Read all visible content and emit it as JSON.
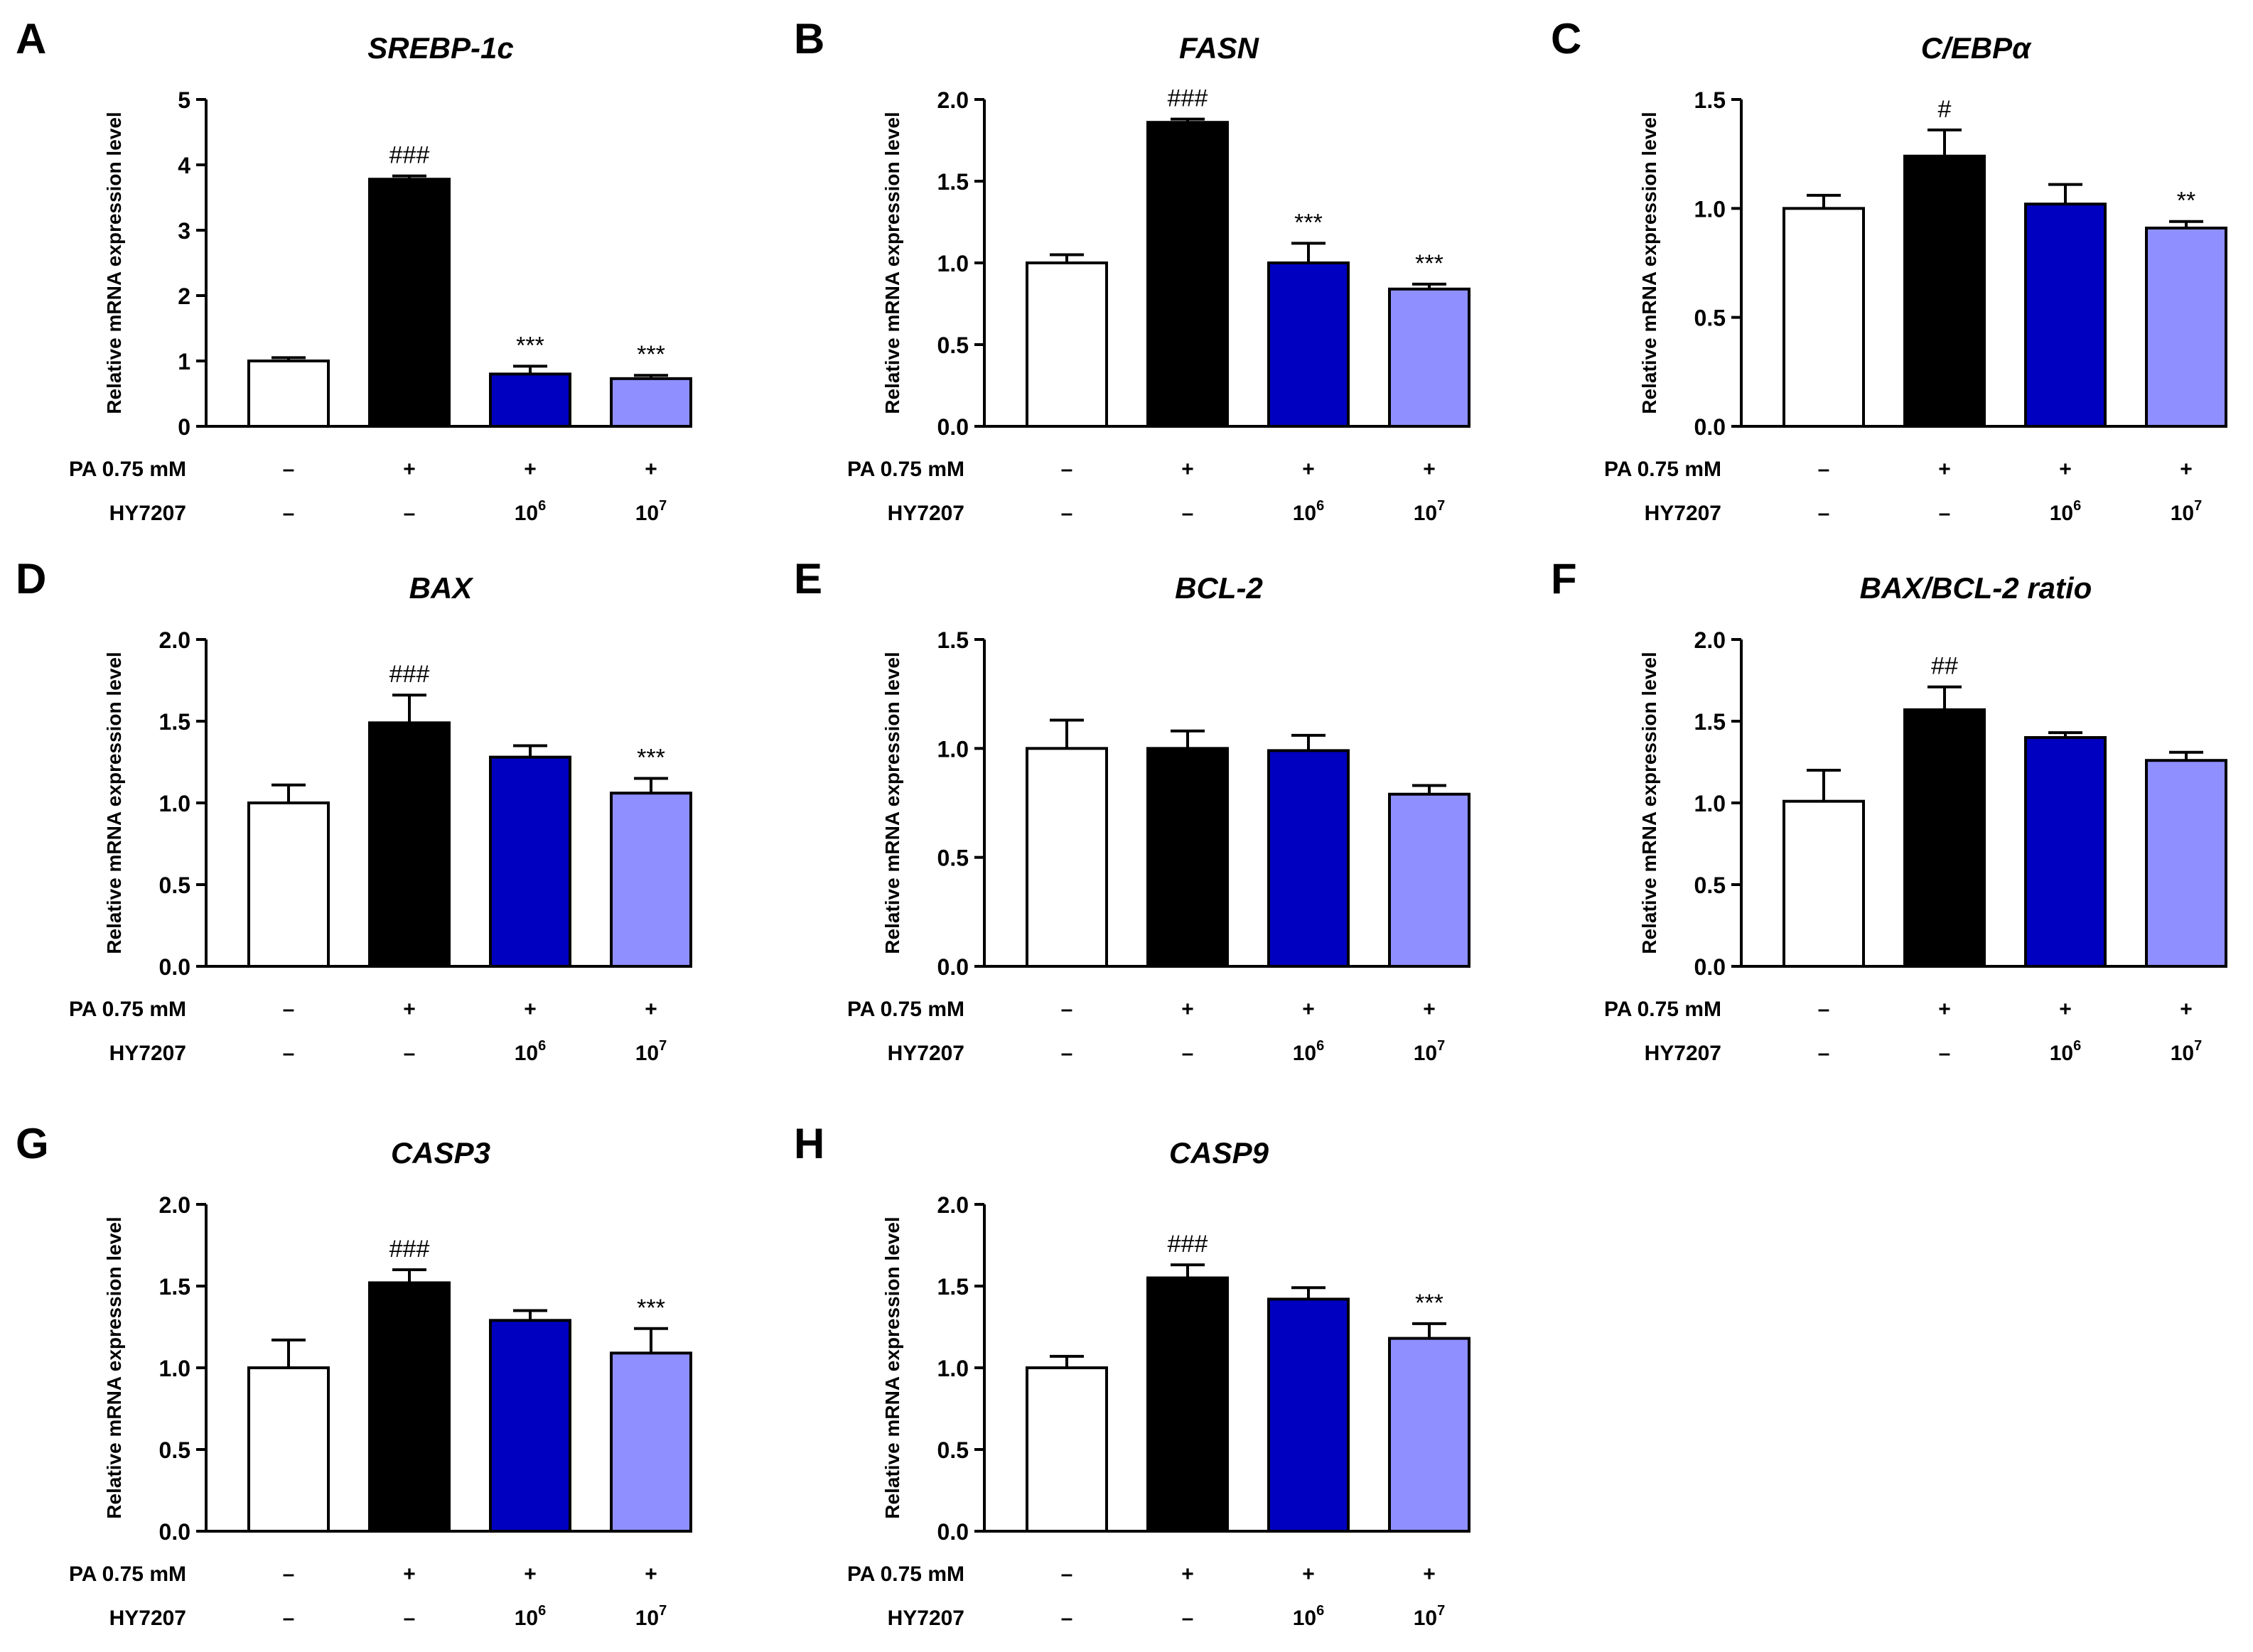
{
  "colors": {
    "bar_fills": [
      "#ffffff",
      "#000000",
      "#0000c0",
      "#8f8fff"
    ],
    "bar_stroke": "#000000",
    "text": "#000000"
  },
  "treatment_rows": [
    {
      "label": "PA 0.75 mM",
      "marks": [
        "–",
        "+",
        "+",
        "+"
      ]
    },
    {
      "label": "HY7207",
      "marks": [
        "–",
        "–",
        "10",
        "10"
      ],
      "superscripts": [
        "",
        "",
        "6",
        "7"
      ]
    }
  ],
  "chart_data": [
    {
      "panel": "A",
      "type": "bar",
      "title": "SREBP-1c",
      "ylabel": "Relative mRNA expression level",
      "ylim": [
        0,
        5
      ],
      "yticks": [
        "0",
        "1",
        "2",
        "3",
        "4",
        "5"
      ],
      "values": [
        1.0,
        3.78,
        0.8,
        0.73
      ],
      "errors": [
        0.05,
        0.05,
        0.12,
        0.05
      ],
      "annotations": [
        "",
        "###",
        "***",
        "***"
      ],
      "grid": false,
      "legend": "none"
    },
    {
      "panel": "B",
      "type": "bar",
      "title": "FASN",
      "ylabel": "Relative mRNA expression level",
      "ylim": [
        0,
        2.0
      ],
      "yticks": [
        "0.0",
        "0.5",
        "1.0",
        "1.5",
        "2.0"
      ],
      "values": [
        1.0,
        1.86,
        1.0,
        0.84
      ],
      "errors": [
        0.05,
        0.02,
        0.12,
        0.03
      ],
      "annotations": [
        "",
        "###",
        "***",
        "***"
      ],
      "grid": false,
      "legend": "none"
    },
    {
      "panel": "C",
      "type": "bar",
      "title": "C/EBPα",
      "ylabel": "Relative mRNA expression level",
      "ylim": [
        0,
        1.5
      ],
      "yticks": [
        "0.0",
        "0.5",
        "1.0",
        "1.5"
      ],
      "values": [
        1.0,
        1.24,
        1.02,
        0.91
      ],
      "errors": [
        0.06,
        0.12,
        0.09,
        0.03
      ],
      "annotations": [
        "",
        "#",
        "",
        "**"
      ],
      "grid": false,
      "legend": "none"
    },
    {
      "panel": "D",
      "type": "bar",
      "title": "BAX",
      "ylabel": "Relative mRNA expression level",
      "ylim": [
        0,
        2.0
      ],
      "yticks": [
        "0.0",
        "0.5",
        "1.0",
        "1.5",
        "2.0"
      ],
      "values": [
        1.0,
        1.49,
        1.28,
        1.06
      ],
      "errors": [
        0.11,
        0.17,
        0.07,
        0.09
      ],
      "annotations": [
        "",
        "###",
        "",
        "***"
      ],
      "grid": false,
      "legend": "none"
    },
    {
      "panel": "E",
      "type": "bar",
      "title": "BCL-2",
      "ylabel": "Relative mRNA expression level",
      "ylim": [
        0,
        1.5
      ],
      "yticks": [
        "0.0",
        "0.5",
        "1.0",
        "1.5"
      ],
      "values": [
        1.0,
        1.0,
        0.99,
        0.79
      ],
      "errors": [
        0.13,
        0.08,
        0.07,
        0.04
      ],
      "annotations": [
        "",
        "",
        "",
        ""
      ],
      "grid": false,
      "legend": "none"
    },
    {
      "panel": "F",
      "type": "bar",
      "title": "BAX/BCL-2 ratio",
      "ylabel": "Relative mRNA expression level",
      "ylim": [
        0,
        2.0
      ],
      "yticks": [
        "0.0",
        "0.5",
        "1.0",
        "1.5",
        "2.0"
      ],
      "values": [
        1.01,
        1.57,
        1.4,
        1.26
      ],
      "errors": [
        0.19,
        0.14,
        0.03,
        0.05
      ],
      "annotations": [
        "",
        "##",
        "",
        ""
      ],
      "grid": false,
      "legend": "none"
    },
    {
      "panel": "G",
      "type": "bar",
      "title": "CASP3",
      "ylabel": "Relative mRNA expression level",
      "ylim": [
        0,
        2.0
      ],
      "yticks": [
        "0.0",
        "0.5",
        "1.0",
        "1.5",
        "2.0"
      ],
      "values": [
        1.0,
        1.52,
        1.29,
        1.09
      ],
      "errors": [
        0.17,
        0.08,
        0.06,
        0.15
      ],
      "annotations": [
        "",
        "###",
        "",
        "***"
      ],
      "grid": false,
      "legend": "none"
    },
    {
      "panel": "H",
      "type": "bar",
      "title": "CASP9",
      "ylabel": "Relative mRNA expression level",
      "ylim": [
        0,
        2.0
      ],
      "yticks": [
        "0.0",
        "0.5",
        "1.0",
        "1.5",
        "2.0"
      ],
      "values": [
        1.0,
        1.55,
        1.42,
        1.18
      ],
      "errors": [
        0.07,
        0.08,
        0.07,
        0.09
      ],
      "annotations": [
        "",
        "###",
        "",
        "***"
      ],
      "grid": false,
      "legend": "none"
    }
  ]
}
